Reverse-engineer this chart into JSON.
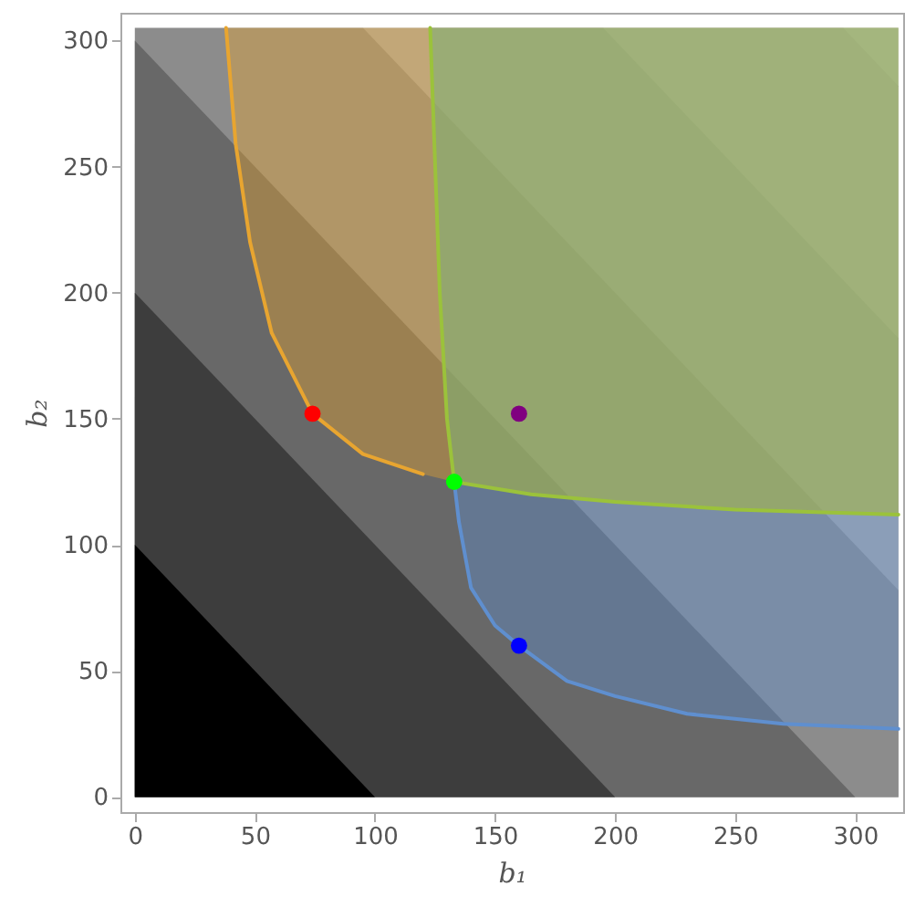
{
  "chart_data": {
    "type": "area",
    "xlabel": "b₁",
    "ylabel": "b₂",
    "xlim": [
      -6,
      320
    ],
    "ylim": [
      -6,
      311
    ],
    "xticks": [
      0,
      50,
      100,
      150,
      200,
      250,
      300
    ],
    "yticks": [
      0,
      50,
      100,
      150,
      200,
      250,
      300
    ],
    "grid": false,
    "legend": false,
    "series": [
      {
        "color": "#d6d6d6",
        "x": [
          295,
          318
        ],
        "values": [
          305,
          305
        ]
      },
      {
        "color": "#c0c0c0",
        "x": [
          195,
          295,
          318
        ],
        "values": [
          305,
          305,
          282
        ]
      },
      {
        "color": "#a8a8a8",
        "x": [
          95,
          195,
          318
        ],
        "values": [
          305,
          305,
          182
        ]
      },
      {
        "color": "#8c8c8c",
        "x": [
          0,
          95,
          318
        ],
        "values": [
          305,
          305,
          82
        ]
      },
      {
        "color": "#686868",
        "x": [
          0,
          300
        ],
        "values": [
          300,
          0
        ]
      },
      {
        "color": "#3d3d3d",
        "x": [
          0,
          200
        ],
        "values": [
          200,
          0
        ]
      },
      {
        "color": "#000000",
        "x": [
          0,
          100
        ],
        "values": [
          100,
          0
        ]
      },
      {
        "type": "line",
        "color": "#e8a530",
        "x": [
          38,
          42,
          48,
          57,
          74,
          95,
          120,
          133,
          165,
          200,
          250,
          318
        ],
        "values": [
          305,
          259,
          220,
          184,
          152,
          136,
          128,
          null,
          null,
          null,
          null,
          null
        ],
        "lower": [
          305,
          259,
          220,
          184,
          152,
          136,
          128,
          125,
          120,
          117,
          114,
          112
        ],
        "upper": [
          305,
          305,
          305,
          305,
          305,
          305,
          305,
          305,
          305,
          305,
          305,
          305
        ]
      },
      {
        "type": "line",
        "color": "#5f8fcf",
        "x": [
          123,
          127,
          130,
          133,
          135,
          140,
          150,
          160,
          180,
          200,
          230,
          270,
          318
        ],
        "values": [
          null,
          null,
          null,
          125,
          109,
          83,
          68,
          60,
          46,
          40,
          33,
          29,
          27
        ],
        "lower": [
          305,
          200,
          150,
          125,
          109,
          83,
          68,
          60,
          46,
          40,
          33,
          29,
          27
        ],
        "upper": [
          305,
          305,
          305,
          305,
          305,
          305,
          305,
          305,
          305,
          305,
          305,
          305,
          305
        ]
      },
      {
        "type": "line",
        "color": "#9bc23b",
        "x": [
          123,
          127,
          130,
          133,
          165,
          200,
          250,
          318
        ],
        "values": [
          305,
          200,
          150,
          125,
          120,
          117,
          114,
          112
        ],
        "lower": [
          305,
          200,
          150,
          125,
          120,
          117,
          114,
          112
        ],
        "upper": [
          305,
          305,
          305,
          305,
          305,
          305,
          305,
          305
        ]
      },
      {
        "type": "scatter",
        "x": [
          74,
          160,
          133,
          160
        ],
        "values": [
          152,
          152,
          125,
          60
        ],
        "colors": [
          "#ff0000",
          "#800080",
          "#00ff00",
          "#0000ff"
        ]
      }
    ]
  }
}
